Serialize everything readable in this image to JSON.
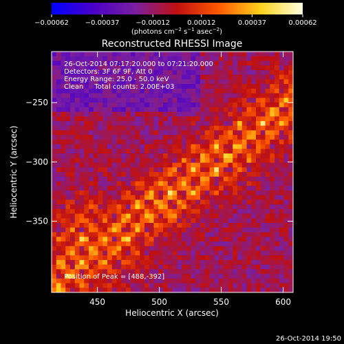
{
  "chart_data": {
    "type": "heatmap",
    "title": "Reconstructed RHESSI Image",
    "xlabel": "Heliocentric X (arcsec)",
    "ylabel": "Heliocentric Y (arcsec)",
    "xlim": [
      413,
      608
    ],
    "ylim": [
      -410,
      -207
    ],
    "xticks": [
      450,
      500,
      550,
      600
    ],
    "xtick_labels": [
      "450",
      "500",
      "550",
      "600"
    ],
    "yticks": [
      -250,
      -300,
      -350
    ],
    "ytick_labels": [
      "−250",
      "−300",
      "−350"
    ],
    "colorbar": {
      "ticks": [
        -0.00062,
        -0.00037,
        -0.00012,
        0.00012,
        0.00037,
        0.00062
      ],
      "tick_labels": [
        "−0.00062",
        "−0.00037",
        "−0.00012",
        "0.00012",
        "0.00037",
        "0.00062"
      ],
      "unit_label": "(photons cm",
      "unit_sup1": "−2",
      "unit_mid": " s",
      "unit_sup2": "−1",
      "unit_mid2": " asec",
      "unit_sup3": "−2",
      "unit_end": ")",
      "colormap": [
        "#0000ff",
        "#4b00c8",
        "#7a1fa0",
        "#c01010",
        "#ff5a00",
        "#ffd21e",
        "#ffffe0"
      ]
    },
    "peak": {
      "x": 488,
      "y": -392
    },
    "grid": false
  },
  "annotations": [
    "26-Oct-2014 07:17:20.000 to 07:21:20.000",
    "Detectors: 3F 6F 9F, Att 0",
    "Energy Range: 25.0 - 50.0 keV",
    "Clean     Total counts: 2.00E+03"
  ],
  "peak_text": "Position of Peak = [488,-392]",
  "footer_timestamp": "26-Oct-2014 19:50"
}
